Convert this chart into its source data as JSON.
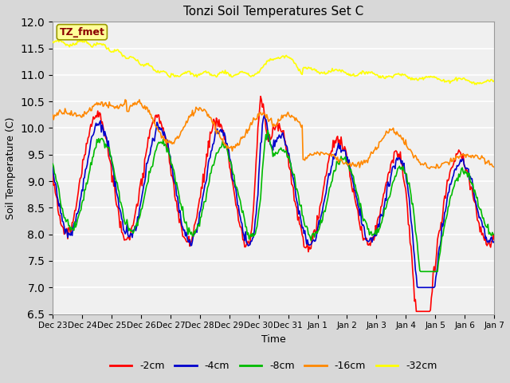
{
  "title": "Tonzi Soil Temperatures Set C",
  "xlabel": "Time",
  "ylabel": "Soil Temperature (C)",
  "ylim": [
    6.5,
    12.0
  ],
  "annotation_text": "TZ_fmet",
  "annotation_color": "#8B0000",
  "annotation_bg": "#FFFF99",
  "annotation_border": "#999900",
  "plot_bg": "#F0F0F0",
  "fig_bg": "#D8D8D8",
  "line_colors": {
    "-2cm": "#FF0000",
    "-4cm": "#0000CC",
    "-8cm": "#00BB00",
    "-16cm": "#FF8800",
    "-32cm": "#FFFF00"
  },
  "line_width": 1.2,
  "xtick_labels": [
    "Dec 23",
    "Dec 24",
    "Dec 25",
    "Dec 26",
    "Dec 27",
    "Dec 28",
    "Dec 29",
    "Dec 30",
    "Dec 31",
    "Jan 1",
    "Jan 2",
    "Jan 3",
    "Jan 4",
    "Jan 5",
    "Jan 6",
    "Jan 7"
  ],
  "yticks": [
    6.5,
    7.0,
    7.5,
    8.0,
    8.5,
    9.0,
    9.5,
    10.0,
    10.5,
    11.0,
    11.5,
    12.0
  ],
  "n_points": 500,
  "days": 15
}
